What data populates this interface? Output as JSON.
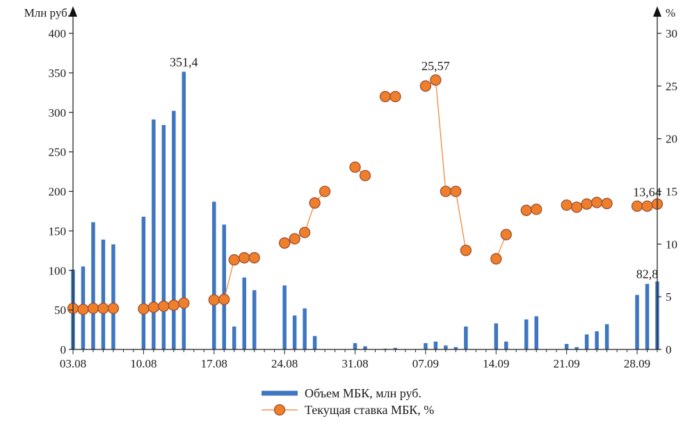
{
  "chart_data": {
    "type": "bar+line",
    "left_axis": {
      "unit": "Млн руб.",
      "ylim": [
        0,
        400
      ],
      "ticks": [
        "0",
        "50",
        "100",
        "150",
        "200",
        "250",
        "300",
        "350",
        "400"
      ]
    },
    "right_axis": {
      "unit": "%",
      "ylim": [
        0,
        30
      ],
      "ticks": [
        "0",
        "5",
        "10",
        "15",
        "20",
        "25",
        "30"
      ]
    },
    "x_axis": {
      "ticks": [
        "03.08",
        "10.08",
        "17.08",
        "24.08",
        "31.08",
        "07.09",
        "14.09",
        "21.09",
        "28.09"
      ]
    },
    "series": [
      {
        "name": "Объем МБК, млн руб.",
        "type": "bar",
        "axis": "left",
        "color": "#3f76c0",
        "points": [
          {
            "date": "03.08",
            "value": 101
          },
          {
            "date": "04.08",
            "value": 105
          },
          {
            "date": "05.08",
            "value": 161
          },
          {
            "date": "06.08",
            "value": 139
          },
          {
            "date": "07.08",
            "value": 133
          },
          {
            "date": "10.08",
            "value": 168
          },
          {
            "date": "11.08",
            "value": 291
          },
          {
            "date": "12.08",
            "value": 284
          },
          {
            "date": "13.08",
            "value": 302
          },
          {
            "date": "14.08",
            "value": 351.4
          },
          {
            "date": "17.08",
            "value": 187
          },
          {
            "date": "18.08",
            "value": 158
          },
          {
            "date": "19.08",
            "value": 29
          },
          {
            "date": "20.08",
            "value": 91
          },
          {
            "date": "21.08",
            "value": 75
          },
          {
            "date": "24.08",
            "value": 81
          },
          {
            "date": "25.08",
            "value": 43
          },
          {
            "date": "26.08",
            "value": 52
          },
          {
            "date": "27.08",
            "value": 17
          },
          {
            "date": "31.08",
            "value": 8
          },
          {
            "date": "01.09",
            "value": 4
          },
          {
            "date": "03.09",
            "value": 1
          },
          {
            "date": "04.09",
            "value": 2
          },
          {
            "date": "07.09",
            "value": 8
          },
          {
            "date": "08.09",
            "value": 10
          },
          {
            "date": "09.09",
            "value": 5
          },
          {
            "date": "10.09",
            "value": 3
          },
          {
            "date": "11.09",
            "value": 29
          },
          {
            "date": "14.09",
            "value": 33
          },
          {
            "date": "15.09",
            "value": 10
          },
          {
            "date": "17.09",
            "value": 38
          },
          {
            "date": "18.09",
            "value": 42
          },
          {
            "date": "21.09",
            "value": 7
          },
          {
            "date": "22.09",
            "value": 3
          },
          {
            "date": "23.09",
            "value": 19
          },
          {
            "date": "24.09",
            "value": 23
          },
          {
            "date": "25.09",
            "value": 32
          },
          {
            "date": "28.09",
            "value": 69
          },
          {
            "date": "29.09",
            "value": 83
          },
          {
            "date": "30.09",
            "value": 86
          }
        ]
      },
      {
        "name": "Текущая ставка МБК, %",
        "type": "line",
        "axis": "right",
        "color": "#f07f2c",
        "points": [
          {
            "date": "03.08",
            "value": 3.9
          },
          {
            "date": "04.08",
            "value": 3.8
          },
          {
            "date": "05.08",
            "value": 3.9
          },
          {
            "date": "06.08",
            "value": 3.9
          },
          {
            "date": "07.08",
            "value": 3.9
          },
          {
            "date": "10.08",
            "value": 3.85
          },
          {
            "date": "11.08",
            "value": 4.0
          },
          {
            "date": "12.08",
            "value": 4.1
          },
          {
            "date": "13.08",
            "value": 4.2
          },
          {
            "date": "14.08",
            "value": 4.4
          },
          {
            "date": "17.08",
            "value": 4.7
          },
          {
            "date": "18.08",
            "value": 4.75
          },
          {
            "date": "19.08",
            "value": 8.5
          },
          {
            "date": "20.08",
            "value": 8.7
          },
          {
            "date": "21.08",
            "value": 8.7
          },
          {
            "date": "24.08",
            "value": 10.1
          },
          {
            "date": "25.08",
            "value": 10.5
          },
          {
            "date": "26.08",
            "value": 11.1
          },
          {
            "date": "27.08",
            "value": 13.9
          },
          {
            "date": "28.08",
            "value": 15.0
          },
          {
            "date": "31.08",
            "value": 17.3
          },
          {
            "date": "01.09",
            "value": 16.5
          },
          {
            "date": "03.09",
            "value": 24.0
          },
          {
            "date": "04.09",
            "value": 24.0
          },
          {
            "date": "07.09",
            "value": 25.0
          },
          {
            "date": "08.09",
            "value": 25.57
          },
          {
            "date": "09.09",
            "value": 15.0
          },
          {
            "date": "10.09",
            "value": 15.0
          },
          {
            "date": "11.09",
            "value": 9.4
          },
          {
            "date": "14.09",
            "value": 8.6
          },
          {
            "date": "15.09",
            "value": 10.9
          },
          {
            "date": "17.09",
            "value": 13.2
          },
          {
            "date": "18.09",
            "value": 13.3
          },
          {
            "date": "21.09",
            "value": 13.7
          },
          {
            "date": "22.09",
            "value": 13.5
          },
          {
            "date": "23.09",
            "value": 13.8
          },
          {
            "date": "24.09",
            "value": 13.95
          },
          {
            "date": "25.09",
            "value": 13.85
          },
          {
            "date": "28.09",
            "value": 13.6
          },
          {
            "date": "29.09",
            "value": 13.6
          },
          {
            "date": "30.09",
            "value": 13.8
          }
        ]
      }
    ],
    "annotations": [
      {
        "text": "351,4",
        "series": "bar",
        "date": "14.08"
      },
      {
        "text": "82,8",
        "series": "bar",
        "date": "29.09"
      },
      {
        "text": "25,57",
        "series": "line",
        "date": "08.09"
      },
      {
        "text": "13,64",
        "series": "line",
        "date": "29.09"
      }
    ],
    "grid": false,
    "legend": {
      "position": "bottom-center"
    }
  }
}
